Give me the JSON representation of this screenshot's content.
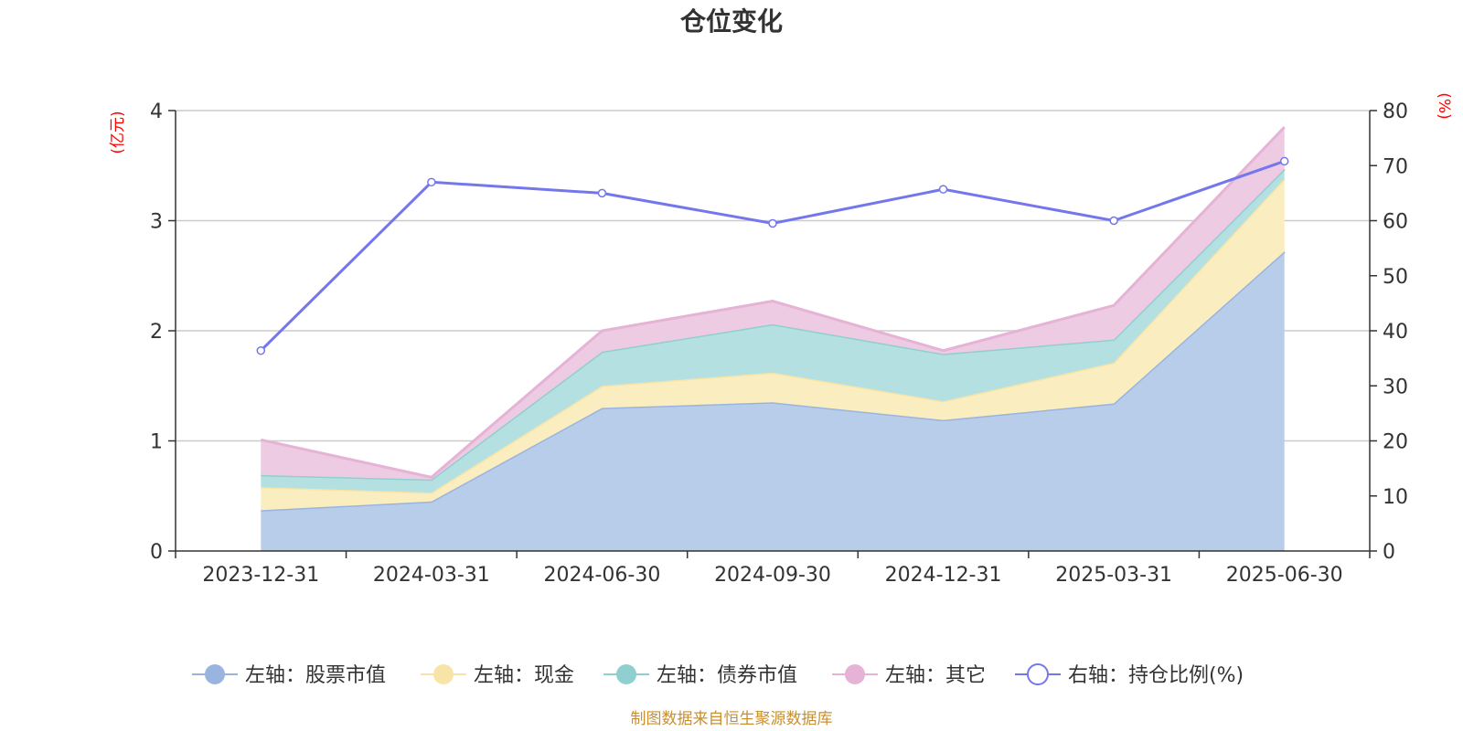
{
  "chart_data": {
    "type": "area",
    "title": "仓位变化",
    "categories": [
      "2023-12-31",
      "2024-03-31",
      "2024-06-30",
      "2024-09-30",
      "2024-12-31",
      "2025-03-31",
      "2025-06-30"
    ],
    "left_axis": {
      "unit": "(亿元)",
      "ylim": [
        0,
        4
      ],
      "ticks": [
        "0",
        "1",
        "2",
        "3",
        "4"
      ]
    },
    "right_axis": {
      "unit": "(%)",
      "ylim": [
        0,
        80
      ],
      "ticks": [
        "0",
        "10",
        "20",
        "30",
        "40",
        "50",
        "60",
        "70",
        "80"
      ]
    },
    "stacked_series": [
      {
        "name": "左轴：股票市值",
        "axis": "left",
        "color": "#9ab4e0",
        "fill": "#b8cdea",
        "values": [
          0.37,
          0.45,
          1.3,
          1.35,
          1.19,
          1.34,
          2.72
        ]
      },
      {
        "name": "左轴：现金",
        "axis": "left",
        "color": "#f8e4a6",
        "fill": "#faedbf",
        "values": [
          0.21,
          0.08,
          0.2,
          0.27,
          0.17,
          0.37,
          0.66
        ]
      },
      {
        "name": "左轴：债券市值",
        "axis": "left",
        "color": "#8fcfcf",
        "fill": "#b5e0e2",
        "values": [
          0.11,
          0.12,
          0.31,
          0.44,
          0.43,
          0.21,
          0.09
        ]
      },
      {
        "name": "左轴：其它",
        "axis": "left",
        "color": "#e6b2d6",
        "fill": "#edcbe3",
        "values": [
          0.32,
          0.02,
          0.19,
          0.21,
          0.03,
          0.31,
          0.38
        ]
      }
    ],
    "line_series": [
      {
        "name": "右轴：持仓比例(%)",
        "axis": "right",
        "color": "#7477ec",
        "values": [
          36.4,
          67.0,
          65.0,
          59.5,
          65.7,
          60.0,
          70.8
        ]
      }
    ],
    "grid": true,
    "legend_position": "bottom",
    "source": "制图数据来自恒生聚源数据库"
  }
}
